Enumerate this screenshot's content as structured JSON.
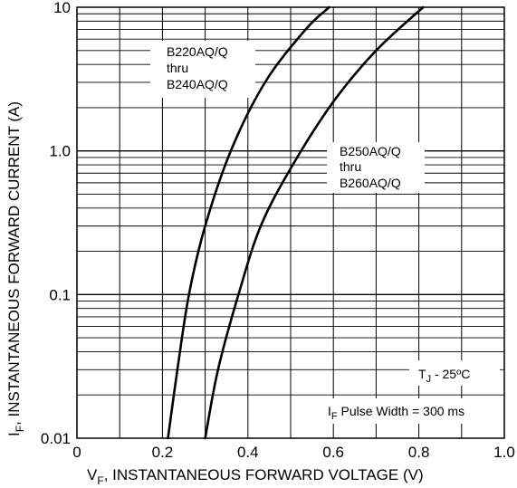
{
  "chart_data": {
    "type": "line",
    "title": "",
    "xlabel": {
      "main": "V",
      "sub": "F",
      "rest": ", INSTANTANEOUS FORWARD VOLTAGE (V)"
    },
    "ylabel": {
      "main": "I",
      "sub": "F",
      "rest": ", INSTANTANEOUS FORWARD CURRENT (A)"
    },
    "xlim": [
      0,
      1.0
    ],
    "ylim": [
      0.01,
      10
    ],
    "yscale": "log",
    "grid": true,
    "x_ticks": [
      {
        "value": 0,
        "label": "0"
      },
      {
        "value": 0.2,
        "label": "0.2"
      },
      {
        "value": 0.4,
        "label": "0.4"
      },
      {
        "value": 0.6,
        "label": "0.6"
      },
      {
        "value": 0.8,
        "label": "0.8"
      },
      {
        "value": 1.0,
        "label": "1.0"
      }
    ],
    "y_ticks": [
      {
        "value": 0.01,
        "label": "0.01"
      },
      {
        "value": 0.1,
        "label": "0.1"
      },
      {
        "value": 1,
        "label": "1.0"
      },
      {
        "value": 10,
        "label": "10"
      }
    ],
    "series": [
      {
        "name": "B220AQ/Q thru B240AQ/Q",
        "label_lines": [
          "B220AQ/Q",
          "thru",
          "B240AQ/Q"
        ],
        "points": [
          [
            0.213,
            0.01
          ],
          [
            0.235,
            0.03
          ],
          [
            0.262,
            0.1
          ],
          [
            0.3,
            0.3
          ],
          [
            0.36,
            1.0
          ],
          [
            0.44,
            3.0
          ],
          [
            0.535,
            7.0
          ],
          [
            0.59,
            10
          ]
        ]
      },
      {
        "name": "B250AQ/Q thru B260AQ/Q",
        "label_lines": [
          "B250AQ/Q",
          "thru",
          "B260AQ/Q"
        ],
        "points": [
          [
            0.3,
            0.01
          ],
          [
            0.33,
            0.03
          ],
          [
            0.378,
            0.1
          ],
          [
            0.43,
            0.3
          ],
          [
            0.505,
            0.8
          ],
          [
            0.6,
            2.2
          ],
          [
            0.7,
            5.0
          ],
          [
            0.81,
            10
          ]
        ]
      }
    ],
    "annotations": {
      "tj": {
        "main": "T",
        "sub": "J",
        "rest": " - 25ºC"
      },
      "pulse": {
        "main": "I",
        "sub": "F",
        "rest": " Pulse Width = 300 ms"
      }
    }
  }
}
